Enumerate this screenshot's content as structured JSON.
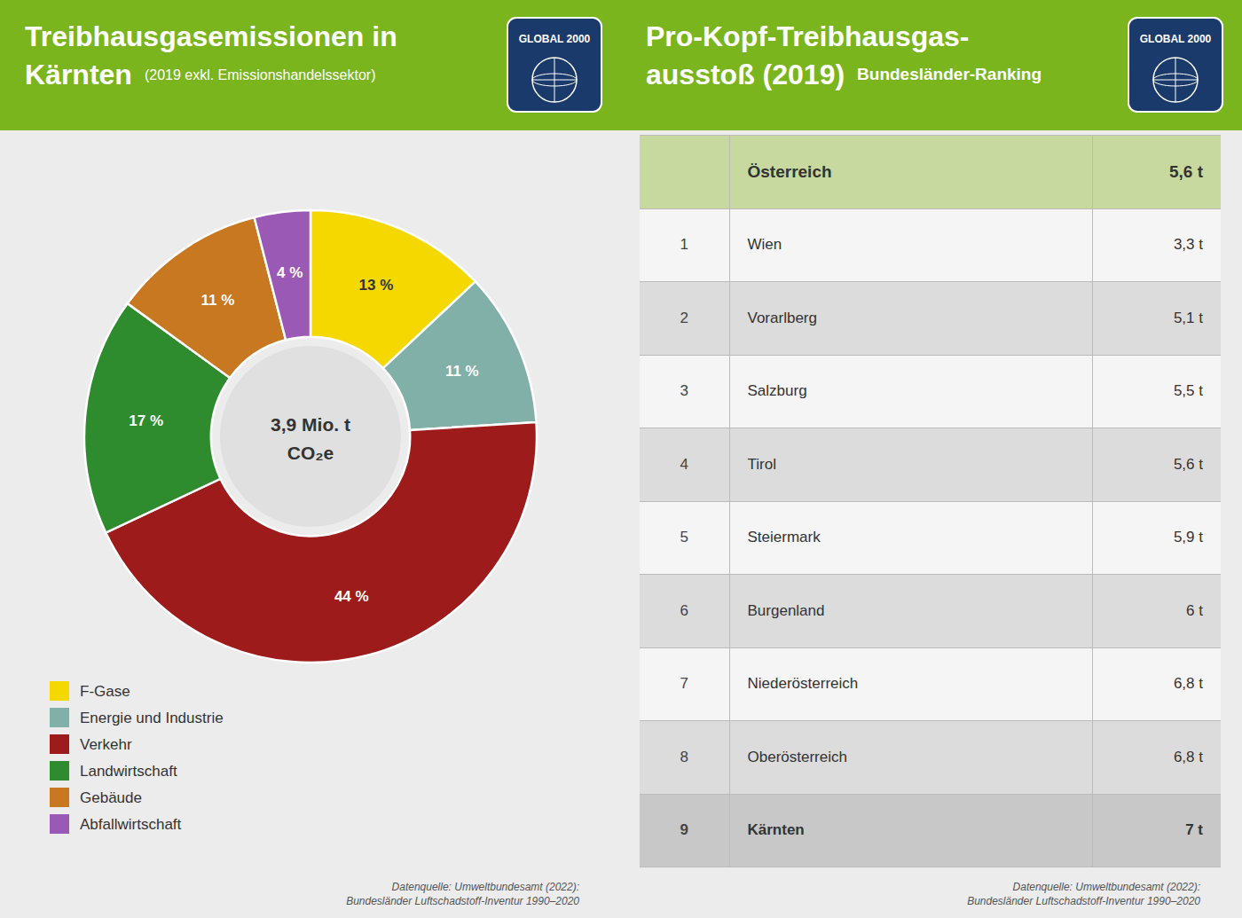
{
  "chart_data": [
    {
      "type": "donut",
      "title": "Treibhausgasemissionen in\nKärnten",
      "subtitle": "(2019 exkl. Emissionshandelssektor)",
      "categories": [
        "F-Gase",
        "Energie und Industrie",
        "Verkehr",
        "Landwirtschaft",
        "Gebäude",
        "Abfallwirtschaft"
      ],
      "values": [
        13,
        11,
        44,
        17,
        11,
        4
      ],
      "value_labels": [
        "13 %",
        "11 %",
        "44 %",
        "17 %",
        "11 %",
        "4 %"
      ],
      "colors": [
        "#f5d800",
        "#80b0a8",
        "#9e1b1b",
        "#2e8b2e",
        "#c87820",
        "#9b59b6"
      ],
      "data_labels": true,
      "legend": "bottom",
      "annotations": [
        "3,9 Mio. t",
        "CO₂e",
        "GLOBAL 2000",
        "Datenquelle: Umweltbundesamt (2022):\nBundesländer Luftschadstoff-Inventur 1990–2020"
      ]
    },
    {
      "type": "table",
      "title": "Pro-Kopf-Treibhausgas-\nausstoß (2019)",
      "subtitle": "Bundesländer-Ranking",
      "header": {
        "name": "Österreich",
        "value": "5,6 t"
      },
      "rows": [
        {
          "rank": 1,
          "name": "Wien",
          "value": "3,3 t"
        },
        {
          "rank": 2,
          "name": "Vorarlberg",
          "value": "5,1 t"
        },
        {
          "rank": 3,
          "name": "Salzburg",
          "value": "5,5 t"
        },
        {
          "rank": 4,
          "name": "Tirol",
          "value": "5,6 t"
        },
        {
          "rank": 5,
          "name": "Steiermark",
          "value": "5,9 t"
        },
        {
          "rank": 6,
          "name": "Burgenland",
          "value": "6 t"
        },
        {
          "rank": 7,
          "name": "Niederösterreich",
          "value": "6,8 t"
        },
        {
          "rank": 8,
          "name": "Oberösterreich",
          "value": "6,8 t"
        },
        {
          "rank": 9,
          "name": "Kärnten",
          "value": "7 t"
        }
      ],
      "annotations": [
        "GLOBAL 2000",
        "Datenquelle: Umweltbundesamt (2022):\nBundesländer Luftschadstoff-Inventur 1990–2020"
      ]
    }
  ]
}
